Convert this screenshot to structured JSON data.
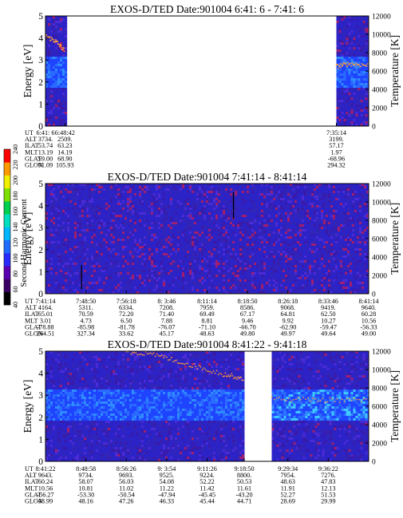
{
  "chart_data": [
    {
      "type": "heatmap",
      "title": "EXOS-D/TED   Date:901004  6:41: 6 - 7:41: 6",
      "ylabel": "Energy [eV]",
      "y2label": "Temperature [K]",
      "ylim": [
        0,
        5
      ],
      "y2lim": [
        0,
        12000
      ],
      "yticks": [
        "0",
        "1",
        "2",
        "3",
        "4",
        "5"
      ],
      "y2ticks": [
        "0",
        "2000",
        "4000",
        "6000",
        "8000",
        "10000",
        "12000"
      ],
      "x_data_segments": [
        [
          0,
          0.066
        ],
        [
          0.9,
          1.0
        ]
      ],
      "ephemeris_rows": [
        "UT",
        "ALT",
        "ILAT",
        "MLT",
        "GLAT",
        "GLON"
      ],
      "columns": [
        {
          "pos": 0.0,
          "values": [
            "6:41: 6",
            "3734.",
            "53.74",
            "13.19",
            "59.00",
            "91.09"
          ]
        },
        {
          "pos": 0.06,
          "values": [
            "6:48:42",
            "2509.",
            "63.23",
            "14.19",
            "68.90",
            "105.93"
          ]
        },
        {
          "pos": 0.9,
          "values": [
            "7:35:14",
            "3199.",
            "57.17",
            "1.97",
            "-68.96",
            "294.32"
          ]
        }
      ],
      "temperature_curve": [
        [
          0.0,
          9800
        ],
        [
          0.03,
          9300
        ],
        [
          0.06,
          8200
        ],
        [
          0.9,
          6500
        ],
        [
          0.94,
          6800
        ],
        [
          1.0,
          6600
        ]
      ]
    },
    {
      "type": "heatmap",
      "title": "EXOS-D/TED   Date:901004  7:41:14 - 8:41:14",
      "ylabel": "Energy [eV]",
      "y2label": "Temperature [K]",
      "ylim": [
        0,
        5
      ],
      "y2lim": [
        0,
        12000
      ],
      "yticks": [
        "0",
        "1",
        "2",
        "3",
        "4",
        "5"
      ],
      "y2ticks": [
        "0",
        "2000",
        "4000",
        "6000",
        "8000",
        "10000",
        "12000"
      ],
      "x_data_segments": [
        [
          0,
          1.0
        ]
      ],
      "ephemeris_rows": [
        "UT",
        "ALT",
        "ILAT",
        "MLT",
        "GLAT",
        "GLON"
      ],
      "columns": [
        {
          "pos": 0.0,
          "values": [
            "7:41:14",
            "4164.",
            "65.01",
            "3.01",
            "-78.88",
            "264.51"
          ]
        },
        {
          "pos": 0.125,
          "values": [
            "7:48:50",
            "5311.",
            "70.59",
            "4.73",
            "-85.98",
            "327.34"
          ]
        },
        {
          "pos": 0.25,
          "values": [
            "7:56:18",
            "6334.",
            "72.20",
            "6.50",
            "-81.78",
            "33.62"
          ]
        },
        {
          "pos": 0.375,
          "values": [
            "8: 3:46",
            "7208.",
            "71.40",
            "7.88",
            "-76.07",
            "45.17"
          ]
        },
        {
          "pos": 0.5,
          "values": [
            "8:11:14",
            "7959.",
            "69.49",
            "8.81",
            "-71.10",
            "48.63"
          ]
        },
        {
          "pos": 0.625,
          "values": [
            "8:18:50",
            "8586.",
            "67.17",
            "9.46",
            "-66.70",
            "49.80"
          ]
        },
        {
          "pos": 0.75,
          "values": [
            "8:26:18",
            "9068.",
            "64.81",
            "9.92",
            "-62.90",
            "49.97"
          ]
        },
        {
          "pos": 0.875,
          "values": [
            "8:33:46",
            "9419.",
            "62.50",
            "10.27",
            "-59.47",
            "49.64"
          ]
        },
        {
          "pos": 1.0,
          "values": [
            "8:41:14",
            "9640.",
            "60.28",
            "10.56",
            "-56.33",
            "49.00"
          ]
        }
      ],
      "colorbar": {
        "label": "Second Harmonic Current",
        "ticks": [
          "40",
          "60",
          "80",
          "100",
          "120",
          "140",
          "160",
          "180",
          "200",
          "220",
          "240"
        ],
        "colors": [
          "#000000",
          "#3b0063",
          "#5a00b0",
          "#2a2bff",
          "#1f6cff",
          "#00b8ff",
          "#00e0c0",
          "#00d050",
          "#7ee000",
          "#f0f000",
          "#ff9a00",
          "#ff0000"
        ]
      }
    },
    {
      "type": "heatmap",
      "title": "EXOS-D/TED   Date:901004  8:41:22 - 9:41:18",
      "ylabel": "Energy [eV]",
      "y2label": "Temperature [K]",
      "ylim": [
        0,
        5
      ],
      "y2lim": [
        0,
        12000
      ],
      "yticks": [
        "0",
        "1",
        "2",
        "3",
        "4",
        "5"
      ],
      "y2ticks": [
        "0",
        "2000",
        "4000",
        "6000",
        "8000",
        "10000",
        "12000"
      ],
      "x_data_segments": [
        [
          0,
          0.615
        ],
        [
          0.7,
          1.0
        ]
      ],
      "ephemeris_rows": [
        "UT",
        "ALT",
        "ILAT",
        "MLT",
        "GLAT",
        "GLON"
      ],
      "columns": [
        {
          "pos": 0.0,
          "values": [
            "8:41:22",
            "9643.",
            "60.24",
            "10.56",
            "-56.27",
            "48.99"
          ]
        },
        {
          "pos": 0.125,
          "values": [
            "8:48:58",
            "9734.",
            "58.07",
            "10.81",
            "-53.30",
            "48.16"
          ]
        },
        {
          "pos": 0.25,
          "values": [
            "8:56:26",
            "9693.",
            "56.03",
            "11.02",
            "-50.54",
            "47.26"
          ]
        },
        {
          "pos": 0.375,
          "values": [
            "9: 3:54",
            "9525.",
            "54.08",
            "11.22",
            "-47.94",
            "46.33"
          ]
        },
        {
          "pos": 0.5,
          "values": [
            "9:11:26",
            "9224.",
            "52.22",
            "11.42",
            "-45.45",
            "45.44"
          ]
        },
        {
          "pos": 0.615,
          "values": [
            "9:18:50",
            "8800.",
            "50.53",
            "11.61",
            "-43.20",
            "44.71"
          ]
        },
        {
          "pos": 0.75,
          "values": [
            "9:29:34",
            "7954.",
            "48.63",
            "11.91",
            "52.27",
            "28.69"
          ]
        },
        {
          "pos": 0.875,
          "values": [
            "9:36:22",
            "7276.",
            "47.83",
            "12.13",
            "51.53",
            "29.99"
          ]
        }
      ],
      "temperature_curve": [
        [
          0.25,
          12000
        ],
        [
          0.35,
          11500
        ],
        [
          0.45,
          10500
        ],
        [
          0.55,
          9500
        ],
        [
          0.615,
          9000
        ],
        [
          0.7,
          6800
        ],
        [
          0.85,
          6700
        ],
        [
          1.0,
          6600
        ]
      ]
    }
  ]
}
